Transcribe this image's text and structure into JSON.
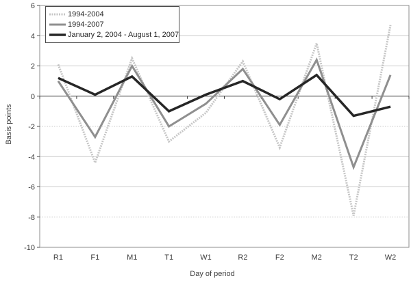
{
  "chart_data": {
    "type": "line",
    "title": "",
    "xlabel": "Day of period",
    "ylabel": "Basis points",
    "categories": [
      "R1",
      "F1",
      "M1",
      "T1",
      "W1",
      "R2",
      "F2",
      "M2",
      "T2",
      "W2"
    ],
    "ylim": [
      -10,
      6
    ],
    "yticks": [
      6,
      4,
      2,
      0,
      -2,
      -4,
      -6,
      -8,
      -10
    ],
    "grid": true,
    "dotted_gridline_values": [
      -2,
      -8
    ],
    "grid_color": "#c9c9c9",
    "frame_color": "#8c8c8c",
    "axis_color": "#4a4a4a",
    "zero_axis_color": "#3b3b3b",
    "text_color": "#3d3d3d",
    "legend_position": "top-left",
    "series": [
      {
        "name": "1994-2004",
        "color": "#c6c6c6",
        "width": 3,
        "dash": "2 1.5",
        "values": [
          2.1,
          -4.4,
          2.5,
          -3.0,
          -1.1,
          2.3,
          -3.4,
          3.5,
          -7.9,
          4.7
        ]
      },
      {
        "name": "1994-2007",
        "color": "#8f8f8f",
        "width": 3,
        "dash": "",
        "values": [
          1.0,
          -2.7,
          2.0,
          -2.0,
          -0.5,
          1.8,
          -1.9,
          2.4,
          -4.7,
          1.4
        ]
      },
      {
        "name": "January 2, 2004 - August 1, 2007",
        "color": "#262626",
        "width": 3.5,
        "dash": "",
        "values": [
          1.2,
          0.1,
          1.3,
          -1.0,
          0.1,
          1.0,
          -0.2,
          1.4,
          -1.3,
          -0.7
        ]
      }
    ]
  }
}
